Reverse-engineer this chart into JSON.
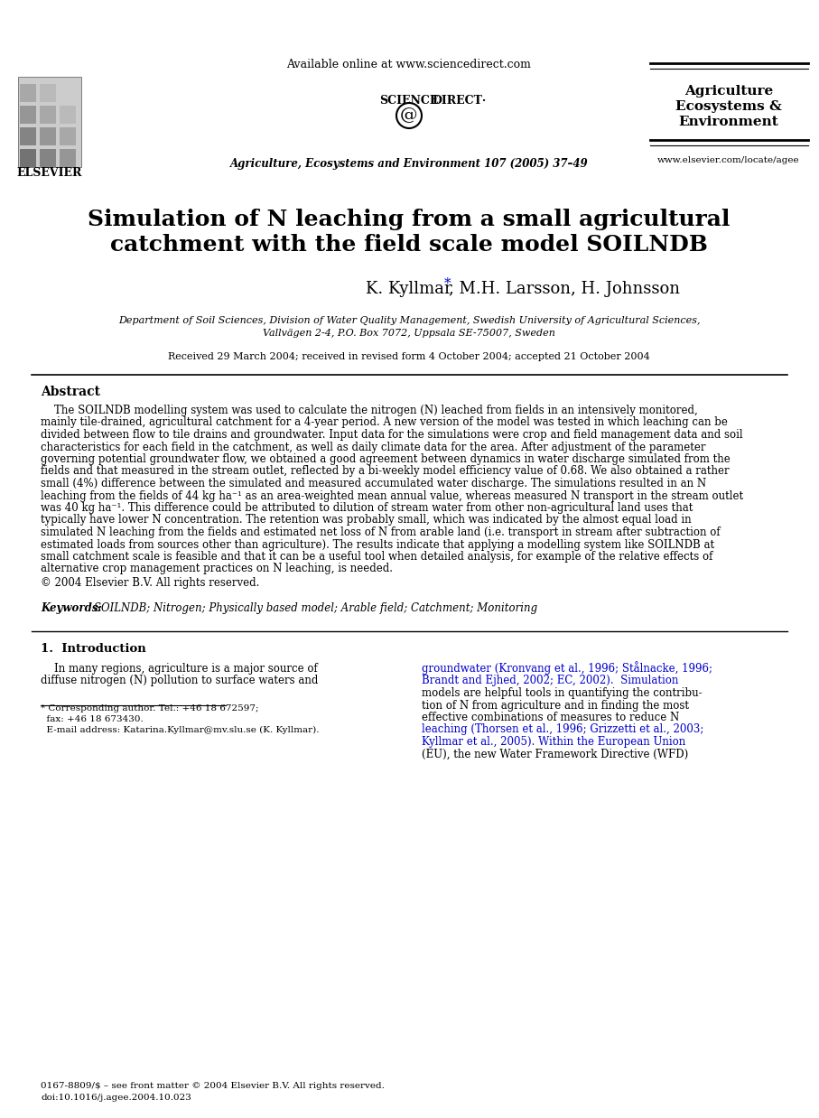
{
  "bg_color": "#ffffff",
  "title_line1": "Simulation of N leaching from a small agricultural",
  "title_line2": "catchment with the field scale model SOILNDB",
  "authors": "K. Kyllmar*, M.H. Larsson, H. Johnsson",
  "affiliation1": "Department of Soil Sciences, Division of Water Quality Management, Swedish University of Agricultural Sciences,",
  "affiliation2": "Vallvägen 2-4, P.O. Box 7072, Uppsala SE-75007, Sweden",
  "received": "Received 29 March 2004; received in revised form 4 October 2004; accepted 21 October 2004",
  "header_center_line1": "Available online at www.sciencedirect.com",
  "header_journal_line1": "Agriculture, Ecosystems and Environment 107 (2005) 37–49",
  "journal_title_line1": "Agriculture",
  "journal_title_line2": "Ecosystems &",
  "journal_title_line3": "Environment",
  "journal_url": "www.elsevier.com/locate/agee",
  "abstract_title": "Abstract",
  "abstract_text": "    The SOILNDB modelling system was used to calculate the nitrogen (N) leached from fields in an intensively monitored, mainly tile-drained, agricultural catchment for a 4-year period. A new version of the model was tested in which leaching can be divided between flow to tile drains and groundwater. Input data for the simulations were crop and field management data and soil characteristics for each field in the catchment, as well as daily climate data for the area. After adjustment of the parameter governing potential groundwater flow, we obtained a good agreement between dynamics in water discharge simulated from the fields and that measured in the stream outlet, reflected by a bi-weekly model efficiency value of 0.68. We also obtained a rather small (4%) difference between the simulated and measured accumulated water discharge. The simulations resulted in an N leaching from the fields of 44 kg ha⁻¹ as an area-weighted mean annual value, whereas measured N transport in the stream outlet was 40 kg ha⁻¹. This difference could be attributed to dilution of stream water from other non-agricultural land uses that typically have lower N concentration. The retention was probably small, which was indicated by the almost equal load in simulated N leaching from the fields and estimated net loss of N from arable land (i.e. transport in stream after subtraction of estimated loads from sources other than agriculture). The results indicate that applying a modelling system like SOILNDB at small catchment scale is feasible and that it can be a useful tool when detailed analysis, for example of the relative effects of alternative crop management practices on N leaching, is needed.",
  "copyright": "© 2004 Elsevier B.V. All rights reserved.",
  "keywords_label": "Keywords:",
  "keywords_text": "SOILNDB; Nitrogen; Physically based model; Arable field; Catchment; Monitoring",
  "section1_title": "1.  Introduction",
  "intro_col1_para1": "    In many regions, agriculture is a major source of diffuse nitrogen (N) pollution to surface waters and",
  "intro_col2_para1": "groundwater (Kronvang et al., 1996; Stålnacke, 1996; Brandt and Ejhed, 2002; EC, 2002). Simulation models are helpful tools in quantifying the contribution of N from agriculture and in finding the most effective combinations of measures to reduce N leaching (Thorsen et al., 1996; Grizzetti et al., 2003; Kyllmar et al., 2005). Within the European Union (EU), the new Water Framework Directive (WFD)",
  "footnote_star": "* Corresponding author. Tel.: +46 18 672597;",
  "footnote_fax": "  fax: +46 18 673430.",
  "footnote_email": "  E-mail address: Katarina.Kyllmar@mv.slu.se (K. Kyllmar).",
  "bottom_issn": "0167-8809/$ – see front matter © 2004 Elsevier B.V. All rights reserved.",
  "bottom_doi": "doi:10.1016/j.agee.2004.10.023",
  "sciencedirect_text": "SCIENCE   DIRECT·",
  "col2_ref1": "groundwater (Kronvang et al., 1996; Stålnacke, 1996;",
  "col2_ref2": "Brandt and Ejhed, 2002; EC, 2002).  Simulation",
  "col2_ref3": "models are helpful tools in quantifying the contribu-",
  "col2_ref4": "tion of N from agriculture and in finding the most",
  "col2_ref5": "effective combinations of measures to reduce N",
  "col2_ref6": "leaching (Thorsen et al., 1996; Grizzetti et al., 2003;",
  "col2_ref7": "Kyllmar et al., 2005). Within the European Union",
  "col2_ref8": "(EU), the new Water Framework Directive (WFD)"
}
